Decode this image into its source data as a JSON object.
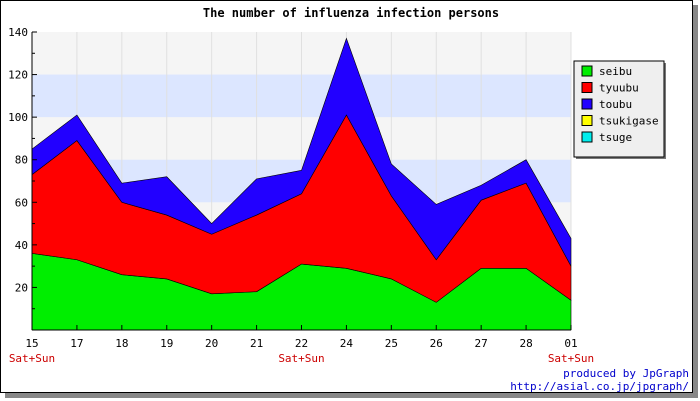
{
  "chart_data": {
    "type": "area",
    "stacked": true,
    "title": "The number of influenza infection persons",
    "categories": [
      "15",
      "17",
      "18",
      "19",
      "20",
      "21",
      "22",
      "24",
      "25",
      "26",
      "27",
      "28",
      "01"
    ],
    "category_sublabels": {
      "0": "Sat+Sun",
      "6": "Sat+Sun",
      "12": "Sat+Sun"
    },
    "ylim": [
      0,
      140
    ],
    "yticks": [
      20,
      40,
      60,
      80,
      100,
      120,
      140
    ],
    "ytick_labels": [
      "20",
      "40",
      "60",
      "80",
      "100",
      "120",
      "140"
    ],
    "bands": [
      {
        "from": 60,
        "to": 80,
        "color": "#dce6ff"
      },
      {
        "from": 100,
        "to": 120,
        "color": "#dce6ff"
      }
    ],
    "legend_position": "right",
    "series": [
      {
        "name": "seibu",
        "color": "#00ee00",
        "values": [
          36,
          33,
          26,
          24,
          17,
          18,
          31,
          29,
          24,
          13,
          29,
          29,
          14
        ]
      },
      {
        "name": "tyuubu",
        "color": "#ff0000",
        "values": [
          37,
          56,
          34,
          30,
          28,
          36,
          33,
          72,
          39,
          20,
          32,
          40,
          16
        ]
      },
      {
        "name": "toubu",
        "color": "#2200ff",
        "values": [
          12,
          12,
          9,
          18,
          5,
          17,
          11,
          36,
          15,
          26,
          7,
          11,
          13
        ]
      },
      {
        "name": "tsukigase",
        "color": "#ffff00",
        "values": [
          0,
          0,
          0,
          0,
          0,
          0,
          0,
          0,
          0,
          0,
          0,
          0,
          0
        ]
      },
      {
        "name": "tsuge",
        "color": "#00eeee",
        "values": [
          0,
          0,
          0,
          0,
          0,
          0,
          0,
          0,
          0,
          0,
          0,
          0,
          0
        ]
      }
    ]
  },
  "credit": {
    "line1": "produced by JpGraph",
    "line2": "http://asial.co.jp/jpgraph/"
  }
}
